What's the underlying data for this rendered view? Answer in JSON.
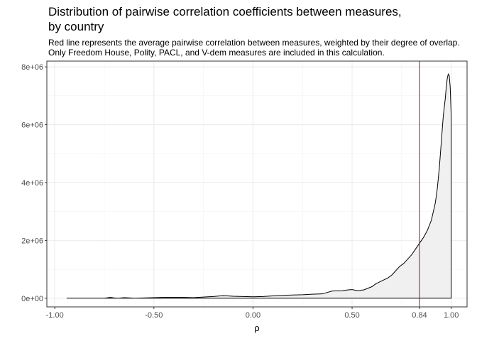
{
  "chart_data": {
    "type": "area",
    "title": "Distribution of pairwise correlation coefficients between measures,\nby country",
    "subtitle": "Red line represents the average pairwise correlation between measures, weighted by their degree of overlap. Only Freedom House, Polity, PACL, and V-dem measures are included in this calculation.",
    "xlabel": "ρ",
    "ylabel": "",
    "xlim": [
      -1.04,
      1.08
    ],
    "ylim": [
      -300000,
      8200000
    ],
    "x_ticks": [
      -1.0,
      -0.5,
      0.0,
      0.5,
      0.84,
      1.0
    ],
    "x_tick_labels": [
      "-1.00",
      "-0.50",
      "0.00",
      "0.50",
      "0.84",
      "1.00"
    ],
    "y_ticks": [
      0,
      2000000,
      4000000,
      6000000,
      8000000
    ],
    "y_tick_labels": [
      "0e+00",
      "2e+06",
      "4e+06",
      "6e+06",
      "8e+06"
    ],
    "reference_line": {
      "x": 0.84,
      "color": "#cc0000"
    },
    "grid": true,
    "fill_color": "#f0f0f0",
    "line_color": "#000000",
    "series": [
      {
        "x": [
          -0.94,
          -0.9,
          -0.85,
          -0.8,
          -0.75,
          -0.72,
          -0.7,
          -0.68,
          -0.65,
          -0.62,
          -0.6,
          -0.55,
          -0.5,
          -0.45,
          -0.4,
          -0.35,
          -0.3,
          -0.25,
          -0.2,
          -0.15,
          -0.1,
          -0.05,
          0.0,
          0.05,
          0.1,
          0.15,
          0.2,
          0.25,
          0.3,
          0.35,
          0.4,
          0.45,
          0.48,
          0.5,
          0.53,
          0.56,
          0.6,
          0.62,
          0.65,
          0.68,
          0.7,
          0.72,
          0.74,
          0.76,
          0.78,
          0.8,
          0.82,
          0.84,
          0.86,
          0.88,
          0.9,
          0.92,
          0.93,
          0.94,
          0.95,
          0.96,
          0.97,
          0.975,
          0.98,
          0.985,
          0.99,
          0.995,
          1.0
        ],
        "y": [
          0,
          0,
          0,
          0,
          0,
          30000,
          10000,
          0,
          20000,
          10000,
          0,
          10000,
          20000,
          30000,
          30000,
          30000,
          20000,
          40000,
          60000,
          90000,
          70000,
          60000,
          50000,
          60000,
          80000,
          100000,
          110000,
          120000,
          140000,
          150000,
          250000,
          260000,
          290000,
          300000,
          260000,
          290000,
          400000,
          500000,
          600000,
          700000,
          800000,
          950000,
          1100000,
          1200000,
          1350000,
          1500000,
          1700000,
          1900000,
          2100000,
          2350000,
          2700000,
          3300000,
          3800000,
          4500000,
          5400000,
          6300000,
          6900000,
          7300000,
          7600000,
          7750000,
          7700000,
          7300000,
          6300000
        ]
      }
    ]
  }
}
